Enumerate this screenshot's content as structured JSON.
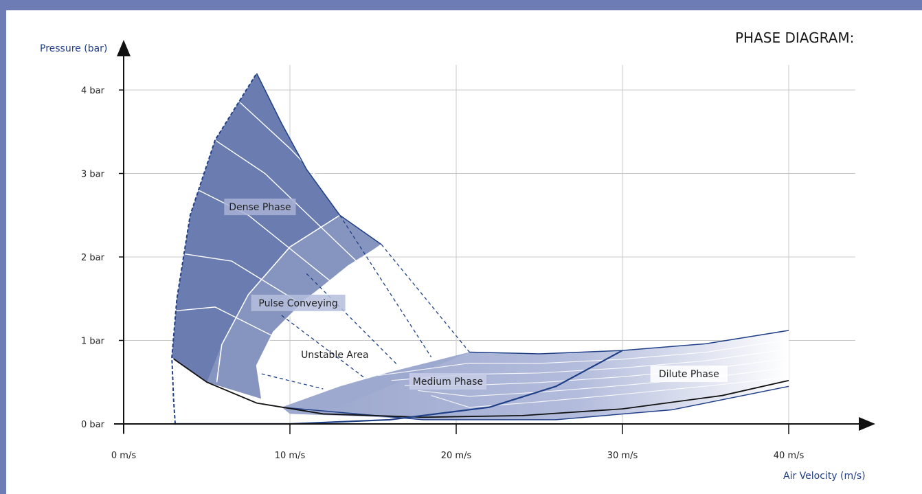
{
  "chart_data": {
    "type": "area",
    "title": "PHASE DIAGRAM:",
    "xlabel": "Air Velocity (m/s)",
    "ylabel": "Pressure (bar)",
    "xlim": [
      0,
      45
    ],
    "ylim": [
      0,
      4.5
    ],
    "grid": true,
    "x_ticks": [
      0,
      10,
      20,
      30,
      40
    ],
    "x_tick_labels": [
      "0 m/s",
      "10 m/s",
      "20 m/s",
      "30 m/s",
      "40 m/s"
    ],
    "y_ticks": [
      0,
      1,
      2,
      3,
      4
    ],
    "y_tick_labels": [
      "0 bar",
      "1 bar",
      "2 bar",
      "3 bar",
      "4 bar"
    ],
    "regions": [
      {
        "name": "Dense Phase",
        "color": "#6a7cb0"
      },
      {
        "name": "Pulse Conveying",
        "color": "#8694c0"
      },
      {
        "name": "Unstable Area",
        "color": "#ffffff"
      },
      {
        "name": "Medium Phase",
        "color": "#9ea9cf"
      },
      {
        "name": "Dilute Phase",
        "color": "#c4cbe4"
      }
    ],
    "boundary_curves": {
      "left_limit": [
        [
          3.1,
          0.0
        ],
        [
          3.0,
          0.3
        ],
        [
          2.9,
          0.8
        ],
        [
          3.2,
          1.5
        ],
        [
          4.0,
          2.5
        ],
        [
          5.5,
          3.4
        ],
        [
          8.0,
          4.2
        ]
      ],
      "dense_upper": [
        [
          8.0,
          4.2
        ],
        [
          9.5,
          3.6
        ],
        [
          11.0,
          3.05
        ],
        [
          13.0,
          2.5
        ],
        [
          15.5,
          2.15
        ]
      ],
      "minimum_pressure": [
        [
          3.0,
          0.78
        ],
        [
          5.0,
          0.5
        ],
        [
          8.0,
          0.25
        ],
        [
          12.0,
          0.12
        ],
        [
          18.0,
          0.08
        ],
        [
          24.0,
          0.1
        ],
        [
          30.0,
          0.18
        ],
        [
          36.0,
          0.34
        ],
        [
          40.0,
          0.52
        ]
      ],
      "dilute_upper": [
        [
          20.8,
          0.86
        ],
        [
          25.0,
          0.84
        ],
        [
          30.0,
          0.88
        ],
        [
          35.0,
          0.96
        ],
        [
          40.0,
          1.12
        ]
      ],
      "dilute_lower": [
        [
          9.5,
          0.2
        ],
        [
          18.0,
          0.05
        ],
        [
          26.0,
          0.05
        ],
        [
          33.0,
          0.17
        ],
        [
          40.0,
          0.45
        ]
      ],
      "phase_transition": [
        [
          3.0,
          0.0
        ],
        [
          10.0,
          0.0
        ],
        [
          16.0,
          0.05
        ],
        [
          22.0,
          0.2
        ],
        [
          26.0,
          0.45
        ],
        [
          30.0,
          0.88
        ]
      ]
    }
  }
}
